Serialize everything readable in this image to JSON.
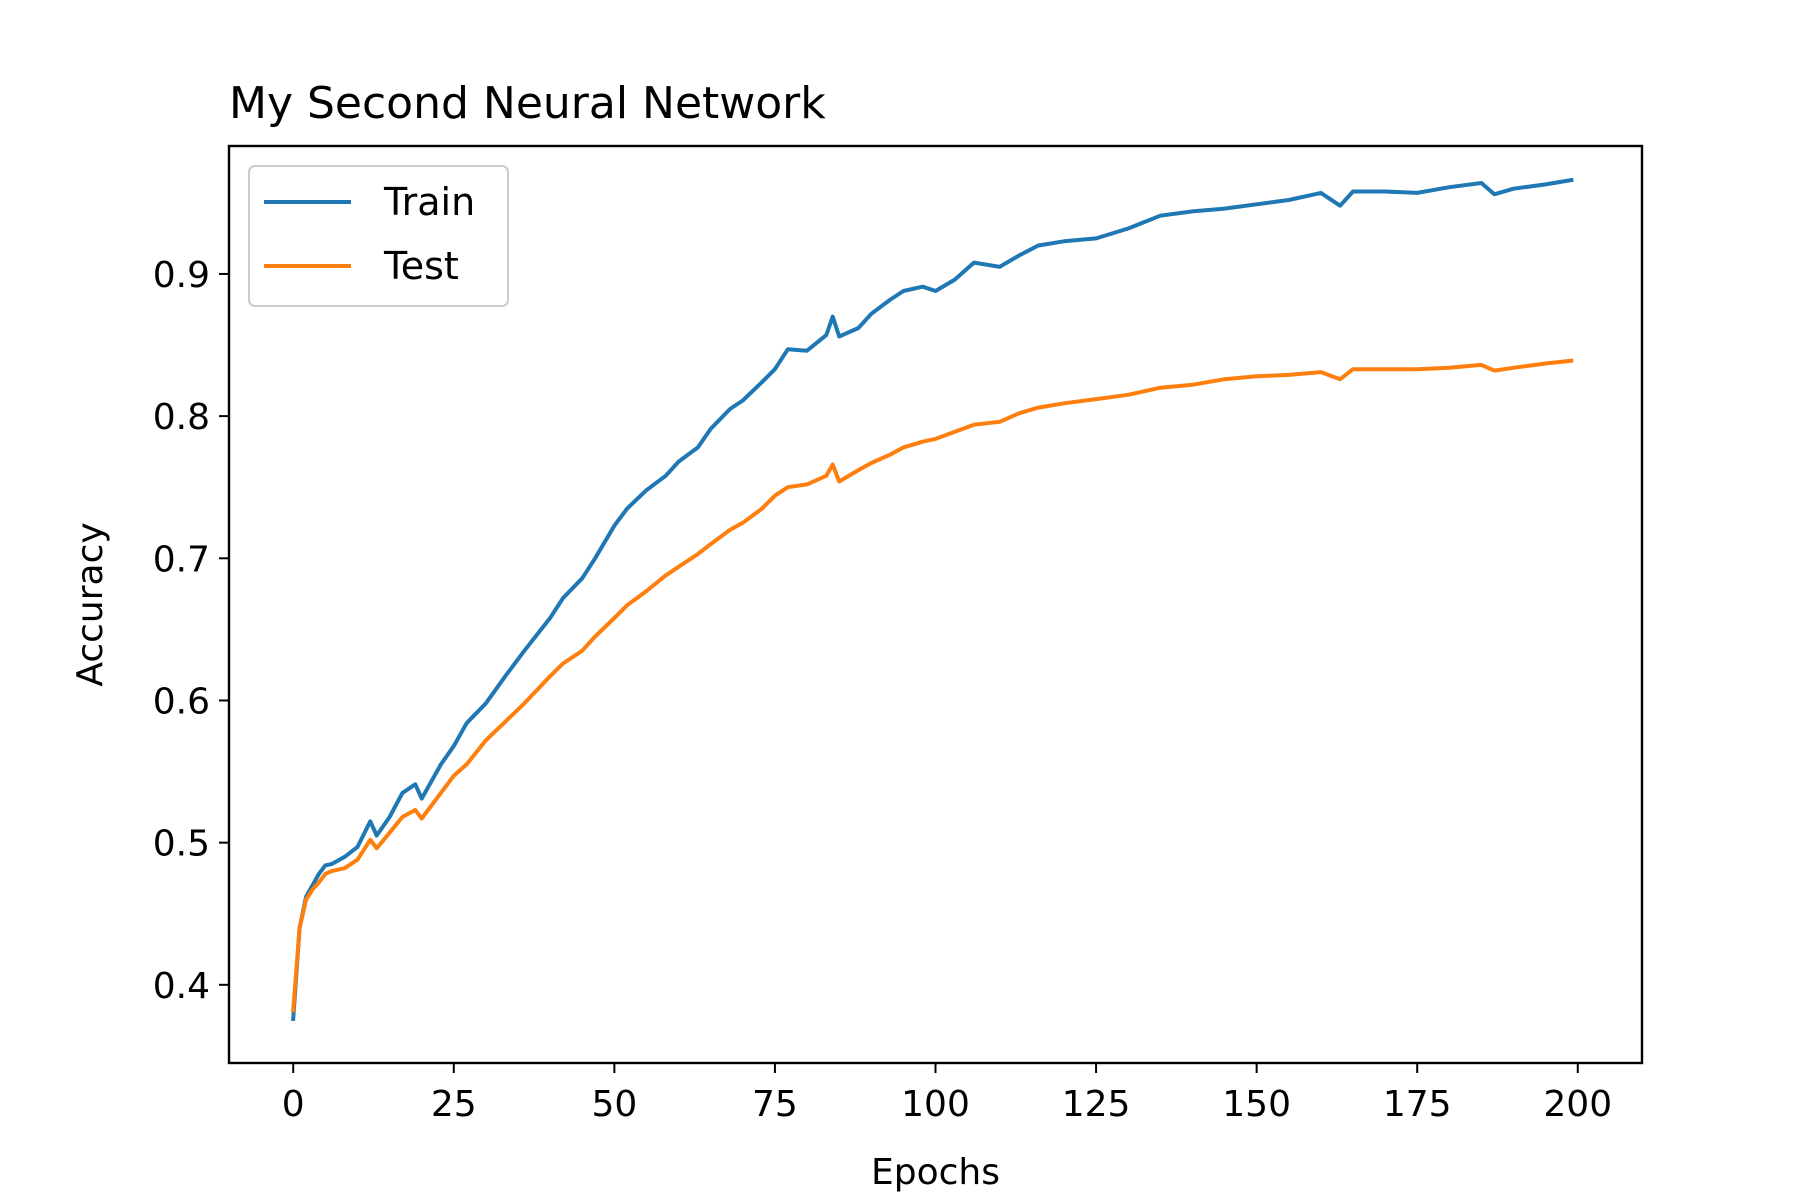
{
  "chart_data": {
    "type": "line",
    "title": "My Second Neural Network",
    "xlabel": "Epochs",
    "ylabel": "Accuracy",
    "xlim": [
      -10,
      210
    ],
    "ylim": [
      0.345,
      0.99
    ],
    "xticks": [
      0,
      25,
      50,
      75,
      100,
      125,
      150,
      175,
      200
    ],
    "yticks": [
      0.4,
      0.5,
      0.6,
      0.7,
      0.8,
      0.9
    ],
    "ytick_labels": [
      "0.4",
      "0.5",
      "0.6",
      "0.7",
      "0.8",
      "0.9"
    ],
    "grid": false,
    "legend": {
      "position": "top-left",
      "entries": [
        "Train",
        "Test"
      ]
    },
    "series": [
      {
        "name": "Train",
        "color": "#1f77b4",
        "x": [
          0,
          1,
          2,
          3,
          4,
          5,
          6,
          8,
          10,
          12,
          13,
          15,
          17,
          19,
          20,
          23,
          25,
          27,
          30,
          33,
          36,
          40,
          42,
          45,
          47,
          50,
          52,
          55,
          58,
          60,
          63,
          65,
          68,
          70,
          73,
          75,
          77,
          80,
          83,
          84,
          85,
          88,
          90,
          93,
          95,
          98,
          100,
          103,
          106,
          110,
          113,
          116,
          120,
          125,
          130,
          135,
          140,
          145,
          150,
          155,
          160,
          163,
          165,
          170,
          175,
          180,
          185,
          187,
          190,
          195,
          199
        ],
        "y": [
          0.376,
          0.44,
          0.462,
          0.47,
          0.478,
          0.484,
          0.485,
          0.49,
          0.497,
          0.515,
          0.505,
          0.518,
          0.535,
          0.541,
          0.531,
          0.555,
          0.568,
          0.584,
          0.598,
          0.617,
          0.635,
          0.658,
          0.672,
          0.686,
          0.7,
          0.723,
          0.735,
          0.748,
          0.758,
          0.768,
          0.778,
          0.791,
          0.805,
          0.811,
          0.824,
          0.833,
          0.847,
          0.846,
          0.857,
          0.87,
          0.856,
          0.862,
          0.872,
          0.882,
          0.888,
          0.891,
          0.888,
          0.896,
          0.908,
          0.905,
          0.913,
          0.92,
          0.923,
          0.925,
          0.932,
          0.941,
          0.944,
          0.946,
          0.949,
          0.952,
          0.957,
          0.948,
          0.958,
          0.958,
          0.957,
          0.961,
          0.964,
          0.956,
          0.96,
          0.963,
          0.966
        ]
      },
      {
        "name": "Test",
        "color": "#ff7f0e",
        "x": [
          0,
          1,
          2,
          3,
          4,
          5,
          6,
          8,
          10,
          12,
          13,
          15,
          17,
          19,
          20,
          23,
          25,
          27,
          30,
          33,
          36,
          40,
          42,
          45,
          47,
          50,
          52,
          55,
          58,
          60,
          63,
          65,
          68,
          70,
          73,
          75,
          77,
          80,
          83,
          84,
          85,
          88,
          90,
          93,
          95,
          98,
          100,
          103,
          106,
          110,
          113,
          116,
          120,
          125,
          130,
          135,
          140,
          145,
          150,
          155,
          160,
          163,
          165,
          170,
          175,
          180,
          185,
          187,
          190,
          195,
          199
        ],
        "y": [
          0.382,
          0.44,
          0.46,
          0.467,
          0.472,
          0.478,
          0.48,
          0.482,
          0.488,
          0.502,
          0.496,
          0.507,
          0.518,
          0.523,
          0.517,
          0.535,
          0.547,
          0.555,
          0.572,
          0.585,
          0.598,
          0.617,
          0.626,
          0.635,
          0.645,
          0.658,
          0.667,
          0.677,
          0.688,
          0.694,
          0.703,
          0.71,
          0.72,
          0.725,
          0.735,
          0.744,
          0.75,
          0.752,
          0.758,
          0.766,
          0.754,
          0.762,
          0.767,
          0.773,
          0.778,
          0.782,
          0.784,
          0.789,
          0.794,
          0.796,
          0.802,
          0.806,
          0.809,
          0.812,
          0.815,
          0.82,
          0.822,
          0.826,
          0.828,
          0.829,
          0.831,
          0.826,
          0.833,
          0.833,
          0.833,
          0.834,
          0.836,
          0.832,
          0.834,
          0.837,
          0.839
        ]
      }
    ]
  }
}
